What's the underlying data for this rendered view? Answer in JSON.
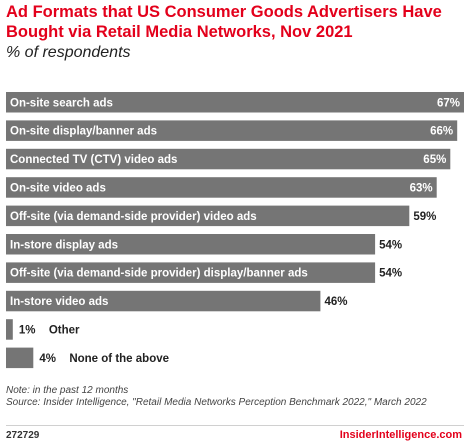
{
  "chart_data": {
    "type": "bar",
    "orientation": "horizontal",
    "title": "Ad Formats that US Consumer Goods Advertisers Have Bought via Retail Media Networks, Nov 2021",
    "subtitle": "% of respondents",
    "categories": [
      "On-site search ads",
      "On-site display/banner ads",
      "Connected TV (CTV) video ads",
      "On-site video ads",
      "Off-site (via demand-side provider) video ads",
      "In-store display ads",
      "Off-site (via demand-side provider) display/banner ads",
      "In-store video ads",
      "Other",
      "None of the above"
    ],
    "values": [
      67,
      66,
      65,
      63,
      59,
      54,
      54,
      46,
      1,
      4
    ],
    "value_labels": [
      "67%",
      "66%",
      "65%",
      "63%",
      "59%",
      "54%",
      "54%",
      "46%",
      "1%",
      "4%"
    ],
    "xlim": [
      0,
      67
    ],
    "bar_color": "#757575",
    "grid": false
  },
  "footer": {
    "note": "Note: in the past 12 months",
    "source": "Source: Insider Intelligence, \"Retail Media Networks Perception Benchmark 2022,\" March 2022",
    "chart_id": "272729",
    "brand": "InsiderIntelligence.com"
  }
}
